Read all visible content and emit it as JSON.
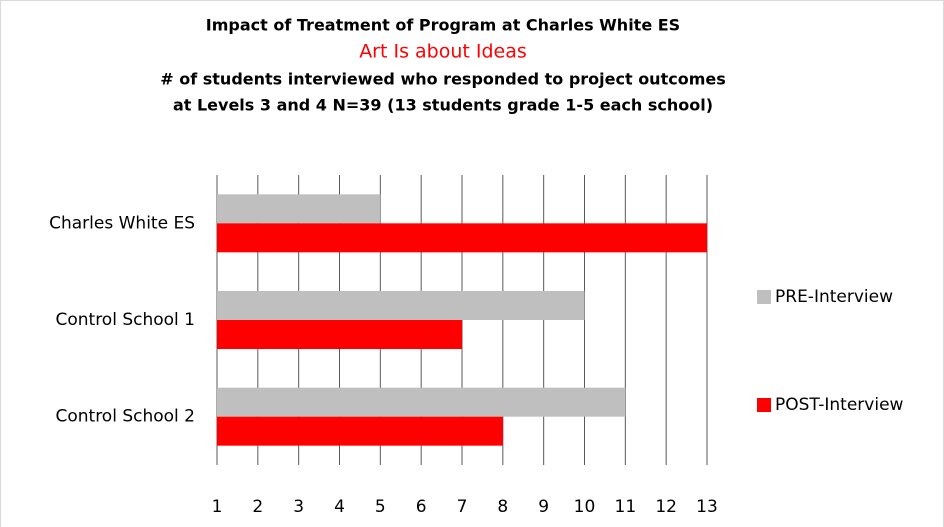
{
  "chart_data": {
    "type": "hbar",
    "title": "Impact of Treatment of Program at Charles White ES",
    "subtitle": "Art Is about Ideas",
    "description": [
      "# of students interviewed who responded to project outcomes",
      "at Levels 3 and 4     N=39 (13 students grade 1-5 each school)"
    ],
    "categories": [
      "Charles White ES",
      "Control School 1",
      "Control School 2"
    ],
    "series": [
      {
        "name": "PRE-Interview",
        "color": "#bfbfbf",
        "values": [
          5,
          10,
          11
        ]
      },
      {
        "name": "POST-Interview",
        "color": "#ff0000",
        "values": [
          13,
          7,
          8
        ]
      }
    ],
    "xlim": [
      1,
      13
    ],
    "xticks": [
      1,
      2,
      3,
      4,
      5,
      6,
      7,
      8,
      9,
      10,
      11,
      12,
      13
    ],
    "grid": true,
    "legend": "right"
  }
}
